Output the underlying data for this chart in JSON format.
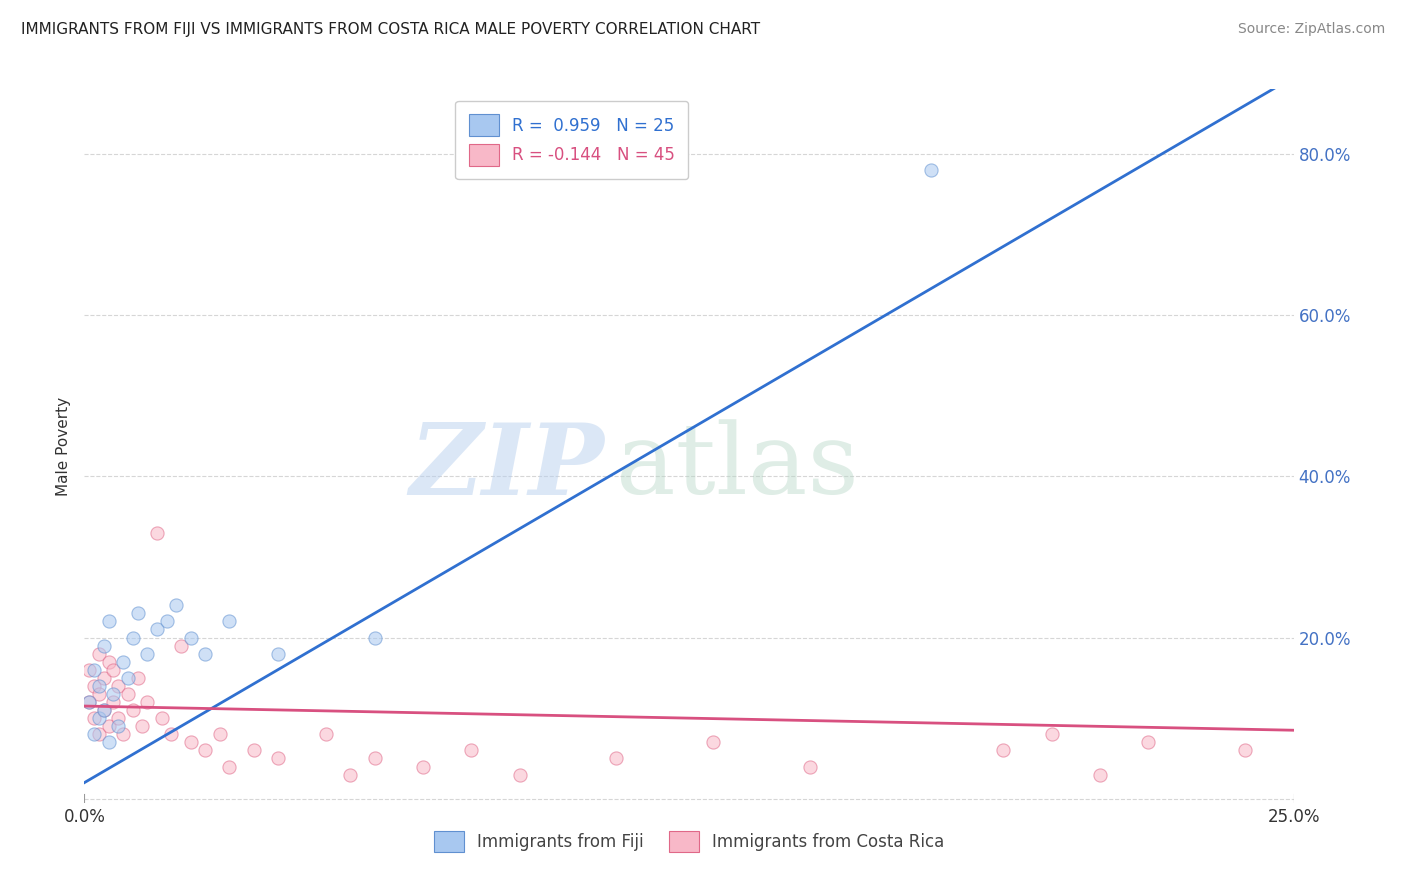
{
  "title": "IMMIGRANTS FROM FIJI VS IMMIGRANTS FROM COSTA RICA MALE POVERTY CORRELATION CHART",
  "source": "Source: ZipAtlas.com",
  "ylabel": "Male Poverty",
  "x_min": 0.0,
  "x_max": 0.25,
  "y_min": -0.005,
  "y_max": 0.88,
  "right_y_ticks": [
    0.0,
    0.2,
    0.4,
    0.6,
    0.8
  ],
  "right_y_tick_labels": [
    "",
    "20.0%",
    "40.0%",
    "60.0%",
    "80.0%"
  ],
  "x_tick_labels_show": [
    "0.0%",
    "25.0%"
  ],
  "x_tick_positions_show": [
    0.0,
    0.25
  ],
  "fiji_color": "#a8c8f0",
  "fiji_edge_color": "#6090d0",
  "cr_color": "#f8b8c8",
  "cr_edge_color": "#e06888",
  "fiji_line_color": "#3070d0",
  "cr_line_color": "#d85080",
  "fiji_R": 0.959,
  "fiji_N": 25,
  "cr_R": -0.144,
  "cr_N": 45,
  "fiji_scatter_x": [
    0.001,
    0.002,
    0.002,
    0.003,
    0.003,
    0.004,
    0.004,
    0.005,
    0.005,
    0.006,
    0.007,
    0.008,
    0.009,
    0.01,
    0.011,
    0.013,
    0.015,
    0.017,
    0.019,
    0.022,
    0.025,
    0.03,
    0.04,
    0.06,
    0.175
  ],
  "fiji_scatter_y": [
    0.12,
    0.16,
    0.08,
    0.1,
    0.14,
    0.11,
    0.19,
    0.22,
    0.07,
    0.13,
    0.09,
    0.17,
    0.15,
    0.2,
    0.23,
    0.18,
    0.21,
    0.22,
    0.24,
    0.2,
    0.18,
    0.22,
    0.18,
    0.2,
    0.78
  ],
  "cr_scatter_x": [
    0.001,
    0.001,
    0.002,
    0.002,
    0.003,
    0.003,
    0.003,
    0.004,
    0.004,
    0.005,
    0.005,
    0.006,
    0.006,
    0.007,
    0.007,
    0.008,
    0.009,
    0.01,
    0.011,
    0.012,
    0.013,
    0.015,
    0.016,
    0.018,
    0.02,
    0.022,
    0.025,
    0.028,
    0.03,
    0.035,
    0.04,
    0.05,
    0.055,
    0.06,
    0.07,
    0.08,
    0.09,
    0.11,
    0.13,
    0.15,
    0.19,
    0.2,
    0.21,
    0.22,
    0.24
  ],
  "cr_scatter_y": [
    0.12,
    0.16,
    0.1,
    0.14,
    0.08,
    0.13,
    0.18,
    0.11,
    0.15,
    0.09,
    0.17,
    0.12,
    0.16,
    0.1,
    0.14,
    0.08,
    0.13,
    0.11,
    0.15,
    0.09,
    0.12,
    0.33,
    0.1,
    0.08,
    0.19,
    0.07,
    0.06,
    0.08,
    0.04,
    0.06,
    0.05,
    0.08,
    0.03,
    0.05,
    0.04,
    0.06,
    0.03,
    0.05,
    0.07,
    0.04,
    0.06,
    0.08,
    0.03,
    0.07,
    0.06
  ],
  "watermark_zip": "ZIP",
  "watermark_atlas": "atlas",
  "grid_color": "#cccccc",
  "background_color": "#ffffff",
  "legend_fiji_label": "R =  0.959   N = 25",
  "legend_cr_label": "R = -0.144   N = 45",
  "bottom_legend_fiji": "Immigrants from Fiji",
  "bottom_legend_cr": "Immigrants from Costa Rica",
  "marker_size": 90,
  "marker_alpha": 0.55,
  "fiji_trend_slope": 3.5,
  "fiji_trend_intercept": 0.02,
  "cr_trend_slope": -0.12,
  "cr_trend_intercept": 0.115
}
